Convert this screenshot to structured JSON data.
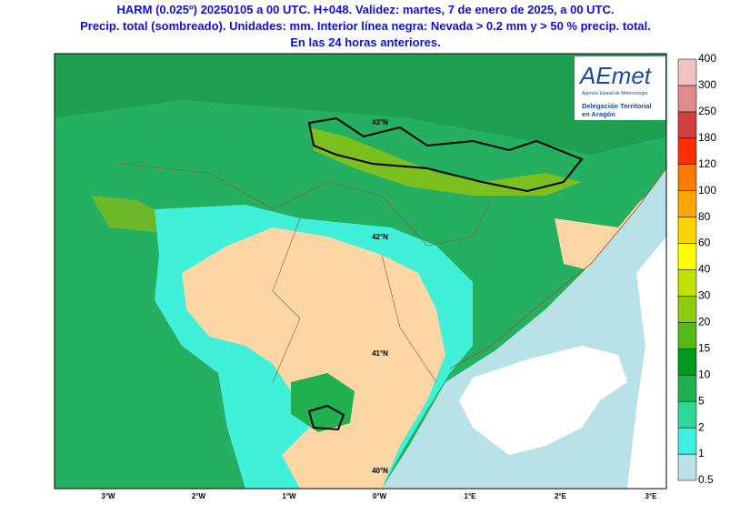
{
  "header": {
    "lines": [
      "HARM (0.025º) 20250105 a 00 UTC. H+048. Validez: martes, 7 de enero de 2025, a 00 UTC.",
      "Precip. total (sombreado). Unidades: mm. Interior línea negra: Nevada > 0.2 mm y > 50 % precip. total.",
      "En las 24 horas anteriores."
    ]
  },
  "logo": {
    "brand": "AEmet",
    "agency": "Agencia Estatal de Meteorología",
    "office": [
      "Delegación Territorial",
      "en Aragón"
    ]
  },
  "map": {
    "lat_labels": [
      "43°N",
      "42°N",
      "41°N",
      "40°N"
    ],
    "lon_labels": [
      "3°W",
      "2°W",
      "1°W",
      "0°W",
      "1°E",
      "2°E",
      "3°E"
    ]
  },
  "legend": {
    "levels": [
      0.5,
      1,
      2,
      5,
      10,
      15,
      20,
      30,
      40,
      60,
      80,
      100,
      120,
      180,
      250,
      300,
      400
    ],
    "colors": [
      "#b8e2e8",
      "#40f0e0",
      "#30d898",
      "#20b050",
      "#009a20",
      "#55b818",
      "#8ccc10",
      "#c0e000",
      "#ffff00",
      "#ffd200",
      "#ffa500",
      "#ff7a00",
      "#ff3000",
      "#d04040",
      "#e08c8c",
      "#f0c4c4"
    ]
  }
}
